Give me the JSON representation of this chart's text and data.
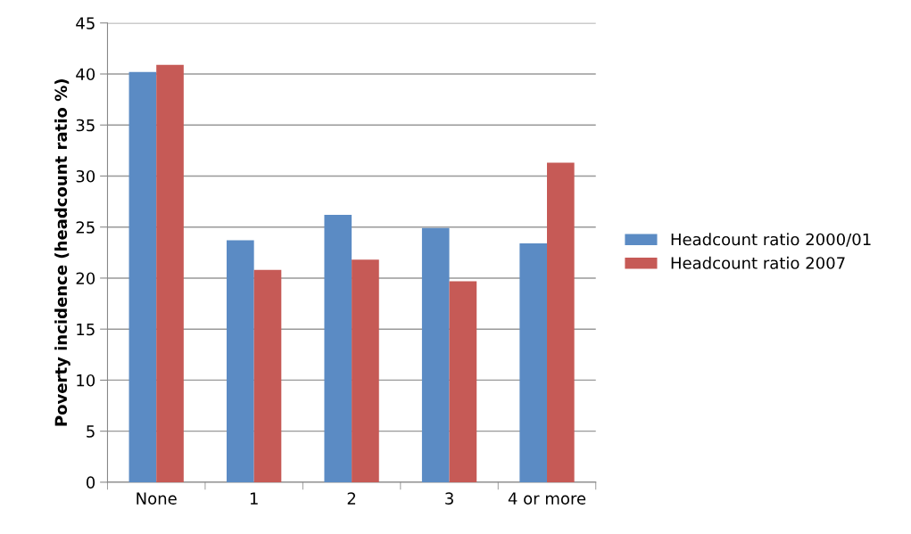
{
  "chart_data": {
    "type": "bar",
    "ylabel": "Poverty incidence (headcount ratio %)",
    "categories": [
      "None",
      "1",
      "2",
      "3",
      "4 or more"
    ],
    "series": [
      {
        "name": "Headcount ratio 2000/01",
        "color": "#5b8bc4",
        "values": [
          40.2,
          23.7,
          26.2,
          24.9,
          23.4
        ]
      },
      {
        "name": "Headcount ratio 2007",
        "color": "#c65a56",
        "values": [
          40.9,
          20.8,
          21.8,
          19.7,
          31.3
        ]
      }
    ],
    "ylim": [
      0,
      45
    ],
    "yticks": [
      0,
      5,
      10,
      15,
      20,
      25,
      30,
      35,
      40,
      45
    ],
    "grid": "y",
    "legend": "right"
  }
}
